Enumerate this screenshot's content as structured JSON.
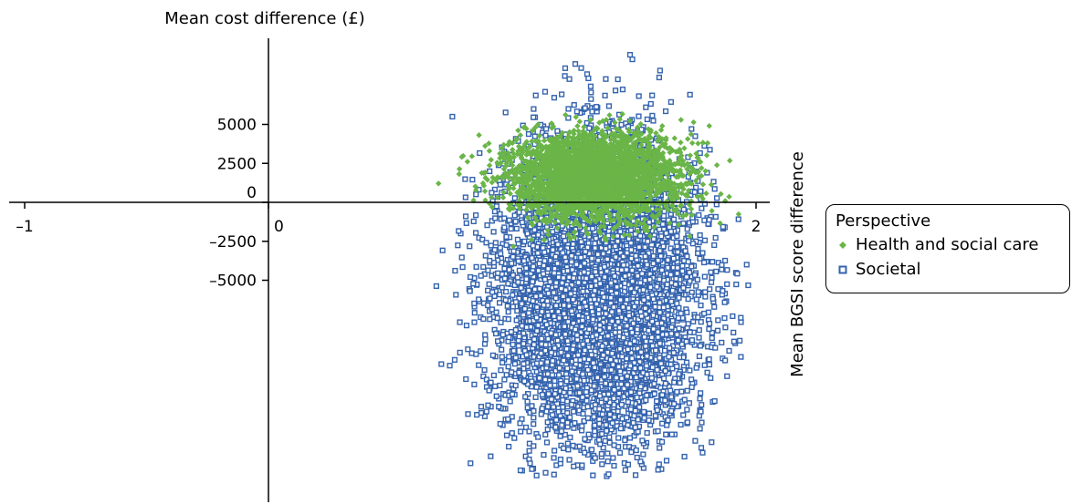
{
  "chart_data": {
    "type": "scatter",
    "title": "",
    "xlabel": "Mean BGSI score difference",
    "ylabel": "Mean cost difference (£)",
    "xlim": [
      -1.05,
      2.1
    ],
    "ylim": [
      -23000,
      12000
    ],
    "x_ticks": [
      {
        "value": -1,
        "label": "–1"
      },
      {
        "value": 0,
        "label": "0"
      },
      {
        "value": 2,
        "label": "2"
      }
    ],
    "y_ticks": [
      {
        "value": 5000,
        "label": "5000"
      },
      {
        "value": 2500,
        "label": "2500"
      },
      {
        "value": 0,
        "label": "0"
      },
      {
        "value": -2500,
        "label": "–2500"
      },
      {
        "value": -5000,
        "label": "–5000"
      }
    ],
    "grid": false,
    "legend": {
      "title": "Perspective",
      "placement": "right"
    },
    "series": [
      {
        "name": "Health and social care",
        "color": "#6ab547",
        "marker": "diamond",
        "cloud": {
          "x_center": 1.33,
          "x_sd": 0.18,
          "x_min": 0.68,
          "x_max": 1.98,
          "y_center": 1700,
          "y_sd": 1400,
          "y_min": -3100,
          "y_max": 5700,
          "points": 3000
        }
      },
      {
        "name": "Societal",
        "color": "#3463ae",
        "marker": "square",
        "cloud": {
          "x_center": 1.35,
          "x_sd": 0.2,
          "x_min": 0.68,
          "x_max": 1.97,
          "y_center": -5800,
          "y_sd": 4600,
          "y_min": -17600,
          "y_max": 9700,
          "points": 6500
        }
      }
    ]
  }
}
